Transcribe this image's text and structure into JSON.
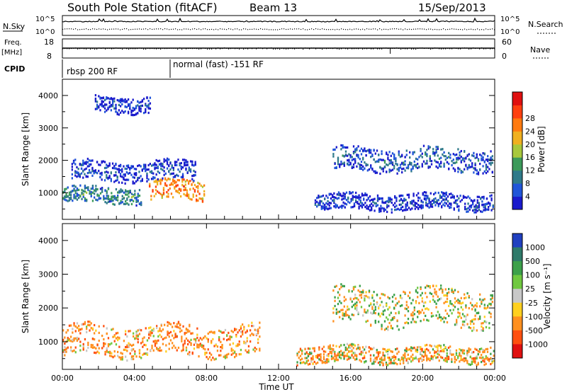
{
  "header": {
    "title": "South Pole Station (fitACF)",
    "beam": "Beam 13",
    "date": "15/Sep/2013"
  },
  "strips": {
    "nsky_label": "N.Sky",
    "nsky_ticks": [
      "10^5",
      "10^0"
    ],
    "nsearch_label": "N.Search",
    "nsearch_ticks": [
      "10^5",
      "10^0"
    ],
    "freq_label": "Freq.",
    "freq_unit": "[MHz]",
    "freq_ticks": [
      "18",
      "8"
    ],
    "nave_label": "Nave",
    "nave_ticks": [
      "60",
      "0"
    ],
    "cpid_label": "CPID",
    "cpid_segments": [
      {
        "label": "rbsp 200 RF",
        "start_hour": 0
      },
      {
        "label": "normal (fast) -151 RF",
        "start_hour": 6
      }
    ]
  },
  "chart_data": [
    {
      "type": "heatmap",
      "panel": "power",
      "ylabel": "Slant Range [km]",
      "xlim": [
        0,
        24
      ],
      "ylim": [
        180,
        4500
      ],
      "yticks": [
        1000,
        2000,
        3000,
        4000
      ],
      "colorbar": {
        "label": "Power [dB]",
        "ticks": [
          "4",
          "8",
          "12",
          "16",
          "20",
          "24",
          "28"
        ],
        "colors": [
          "#1a1acc",
          "#2055d8",
          "#2f7a8a",
          "#3c9a5a",
          "#a8c83c",
          "#f0b020",
          "#ff7a10",
          "#ff4010",
          "#e01010"
        ]
      },
      "features": [
        {
          "range_km": [
            700,
            1200
          ],
          "hours": [
            0,
            4.5
          ],
          "power_db": 12
        },
        {
          "range_km": [
            800,
            1400
          ],
          "hours": [
            4.8,
            8
          ],
          "power_db": 28
        },
        {
          "range_km": [
            1400,
            2000
          ],
          "hours": [
            0.5,
            7.5
          ],
          "power_db": 6
        },
        {
          "range_km": [
            3500,
            4000
          ],
          "hours": [
            1.8,
            5
          ],
          "power_db": 5
        },
        {
          "range_km": [
            1700,
            2400
          ],
          "hours": [
            15,
            24
          ],
          "power_db": 8
        },
        {
          "range_km": [
            500,
            1000
          ],
          "hours": [
            14,
            24
          ],
          "power_db": 6
        }
      ]
    },
    {
      "type": "heatmap",
      "panel": "velocity",
      "ylabel": "Slant Range [km]",
      "xlabel": "Time UT",
      "xlim": [
        0,
        24
      ],
      "ylim": [
        180,
        4500
      ],
      "yticks": [
        1000,
        2000,
        3000,
        4000
      ],
      "xticks": [
        "00:00",
        "04:00",
        "08:00",
        "12:00",
        "16:00",
        "20:00",
        "00:00"
      ],
      "colorbar": {
        "label": "Velocity [m s⁻¹]",
        "ticks": [
          "1000",
          "500",
          "100",
          "25",
          "-25",
          "-100",
          "-500",
          "-1000"
        ],
        "colors": [
          "#2040c0",
          "#2f7a6a",
          "#3ca04a",
          "#70c840",
          "#c8c8c8",
          "#ffd020",
          "#ff9020",
          "#ff5010",
          "#e01010"
        ]
      },
      "features": [
        {
          "range_km": [
            600,
            1500
          ],
          "hours": [
            0,
            11
          ],
          "velocity": -300
        },
        {
          "range_km": [
            1500,
            2600
          ],
          "hours": [
            15,
            24
          ],
          "velocity": 0
        },
        {
          "range_km": [
            400,
            900
          ],
          "hours": [
            13,
            24
          ],
          "velocity": -200
        }
      ]
    }
  ]
}
